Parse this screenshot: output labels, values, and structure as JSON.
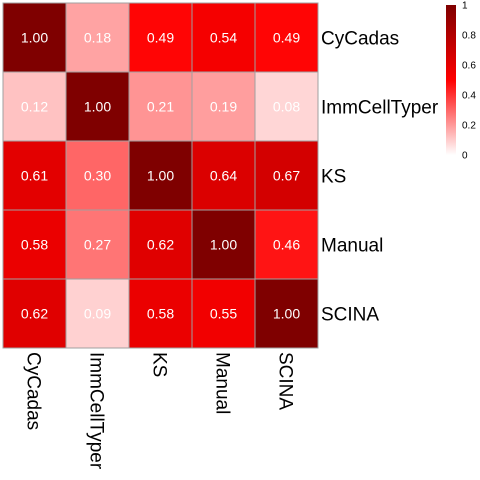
{
  "chart_data": {
    "type": "heatmap",
    "rows": [
      "CyCadas",
      "ImmCellTyper",
      "KS",
      "Manual",
      "SCINA"
    ],
    "columns": [
      "CyCadas",
      "ImmCellTyper",
      "KS",
      "Manual",
      "SCINA"
    ],
    "values": [
      [
        1.0,
        0.18,
        0.49,
        0.54,
        0.49
      ],
      [
        0.12,
        1.0,
        0.21,
        0.19,
        0.08
      ],
      [
        0.61,
        0.3,
        1.0,
        0.64,
        0.67
      ],
      [
        0.58,
        0.27,
        0.62,
        1.0,
        0.46
      ],
      [
        0.62,
        0.09,
        0.58,
        0.55,
        1.0
      ]
    ],
    "value_labels": [
      [
        "1.00",
        "0.18",
        "0.49",
        "0.54",
        "0.49"
      ],
      [
        "0.12",
        "1.00",
        "0.21",
        "0.19",
        "0.08"
      ],
      [
        "0.61",
        "0.30",
        "1.00",
        "0.64",
        "0.67"
      ],
      [
        "0.58",
        "0.27",
        "0.62",
        "1.00",
        "0.46"
      ],
      [
        "0.62",
        "0.09",
        "0.58",
        "0.55",
        "1.00"
      ]
    ],
    "color_scale": {
      "min": 0,
      "max": 1,
      "colors": [
        "#ffffff",
        "#ff0000",
        "#7f0000"
      ],
      "stops": [
        0,
        0.5,
        1
      ]
    },
    "legend": {
      "placement": "top-right",
      "ticks": [
        0,
        0.2,
        0.4,
        0.6,
        0.8,
        1
      ],
      "tick_labels": [
        "0",
        "0.2",
        "0.4",
        "0.6",
        "0.8",
        "1"
      ]
    },
    "cell_border_color": "#a0a0a0"
  }
}
